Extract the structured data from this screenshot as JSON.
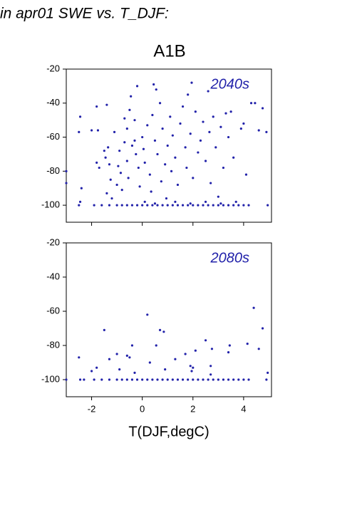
{
  "chart_data": {
    "type": "scatter",
    "title": "in apr01 SWE vs. T_DJF:",
    "subtitle": "A1B",
    "xlabel": "T(DJF,degC)",
    "xlim": [
      -3,
      5.1
    ],
    "xticks": [
      -2,
      0,
      2,
      4
    ],
    "ylim": [
      -110,
      -20
    ],
    "yticks": [
      -20,
      -40,
      -60,
      -80,
      -100
    ],
    "color": "#2222aa",
    "panels": [
      {
        "label": "2040s",
        "x": [
          -3.0,
          -3.0,
          -2.5,
          -2.45,
          -2.4,
          -2.45,
          -2.0,
          -1.8,
          -1.75,
          -1.8,
          -1.7,
          -1.4,
          -1.5,
          -1.45,
          -1.35,
          -1.3,
          -1.25,
          -1.4,
          -1.2,
          -1.1,
          -1.0,
          -0.95,
          -0.9,
          -0.85,
          -0.8,
          -0.7,
          -0.7,
          -0.6,
          -0.6,
          -0.55,
          -0.5,
          -0.45,
          -0.4,
          -0.3,
          -0.3,
          -0.25,
          -0.2,
          -0.15,
          -0.1,
          0,
          0.05,
          0.1,
          0.2,
          0.3,
          0.35,
          0.4,
          0.45,
          0.5,
          0.55,
          0.6,
          0.7,
          0.75,
          0.8,
          0.9,
          0.95,
          1.0,
          1.1,
          1.15,
          1.2,
          1.3,
          1.4,
          1.5,
          1.6,
          1.7,
          1.75,
          1.8,
          1.9,
          1.95,
          2.0,
          2.1,
          2.2,
          2.3,
          2.4,
          2.5,
          2.6,
          2.65,
          2.7,
          2.8,
          2.9,
          3.0,
          3.1,
          3.2,
          3.3,
          3.4,
          3.5,
          3.6,
          3.7,
          3.9,
          4.0,
          4.1,
          4.3,
          4.45,
          4.6,
          4.75,
          4.9,
          4.95,
          -2.5,
          -1.9,
          -1.6,
          -1.3,
          -1.0,
          -0.8,
          -0.6,
          -0.4,
          -0.2,
          0,
          0.2,
          0.4,
          0.6,
          0.8,
          1.0,
          1.2,
          1.4,
          1.6,
          1.8,
          2.0,
          2.2,
          2.4,
          2.6,
          2.8,
          3.0,
          3.2,
          3.4,
          3.6,
          3.8,
          4.0,
          4.2,
          0.1,
          0.5,
          1.3,
          1.9,
          2.5,
          3.1
        ],
        "y": [
          -80,
          -87,
          -57,
          -48,
          -90,
          -98,
          -56,
          -42,
          -56,
          -75,
          -78,
          -41,
          -68,
          -72,
          -66,
          -76,
          -85,
          -93,
          -96,
          -57,
          -88,
          -77,
          -68,
          -81,
          -91,
          -63,
          -49,
          -55,
          -74,
          -84,
          -44,
          -36,
          -65,
          -50,
          -62,
          -70,
          -30,
          -78,
          -89,
          -60,
          -67,
          -75,
          -53,
          -82,
          -92,
          -47,
          -29,
          -62,
          -32,
          -70,
          -40,
          -86,
          -55,
          -76,
          -96,
          -65,
          -48,
          -80,
          -59,
          -72,
          -88,
          -52,
          -42,
          -66,
          -78,
          -35,
          -58,
          -28,
          -84,
          -45,
          -69,
          -62,
          -51,
          -74,
          -33,
          -57,
          -87,
          -48,
          -66,
          -95,
          -54,
          -78,
          -46,
          -60,
          -45,
          -72,
          -98,
          -55,
          -52,
          -82,
          -40,
          -40,
          -56,
          -43,
          -57,
          -100,
          -100,
          -100,
          -100,
          -100,
          -100,
          -100,
          -100,
          -100,
          -100,
          -100,
          -100,
          -100,
          -100,
          -100,
          -100,
          -100,
          -100,
          -100,
          -100,
          -100,
          -100,
          -100,
          -100,
          -100,
          -100,
          -100,
          -100,
          -100,
          -100,
          -100,
          -100,
          -98,
          -99,
          -98,
          -99,
          -98,
          -99
        ]
      },
      {
        "label": "2080s",
        "x": [
          -3.0,
          -2.5,
          -2.45,
          -2.0,
          -1.8,
          -1.5,
          -1.3,
          -1.0,
          -0.9,
          -0.6,
          -0.5,
          -0.4,
          -0.3,
          0.2,
          0.3,
          0.55,
          0.7,
          0.85,
          0.9,
          1.3,
          1.7,
          1.9,
          1.95,
          2.0,
          2.1,
          2.5,
          2.7,
          2.7,
          2.75,
          3.4,
          3.45,
          4.15,
          4.4,
          4.6,
          4.75,
          4.95,
          4.9,
          -2.3,
          -1.9,
          -1.6,
          -1.3,
          -1.0,
          -0.8,
          -0.6,
          -0.4,
          -0.2,
          0,
          0.2,
          0.4,
          0.6,
          0.8,
          1.0,
          1.2,
          1.4,
          1.6,
          1.8,
          2.0,
          2.2,
          2.4,
          2.6,
          2.8,
          3.0,
          3.2,
          3.4,
          3.6,
          3.8,
          4.0,
          4.2
        ],
        "y": [
          -100,
          -87,
          -100,
          -95,
          -93,
          -71,
          -88,
          -85,
          -94,
          -86,
          -87,
          -80,
          -96,
          -62,
          -90,
          -80,
          -71,
          -72,
          -94,
          -88,
          -85,
          -92,
          -95,
          -93,
          -83,
          -77,
          -97,
          -92,
          -82,
          -84,
          -80,
          -79,
          -58,
          -82,
          -70,
          -96,
          -100,
          -100,
          -100,
          -100,
          -100,
          -100,
          -100,
          -100,
          -100,
          -100,
          -100,
          -100,
          -100,
          -100,
          -100,
          -100,
          -100,
          -100,
          -100,
          -100,
          -100,
          -100,
          -100,
          -100,
          -100,
          -100,
          -100,
          -100,
          -100,
          -100,
          -100,
          -100
        ]
      }
    ]
  }
}
